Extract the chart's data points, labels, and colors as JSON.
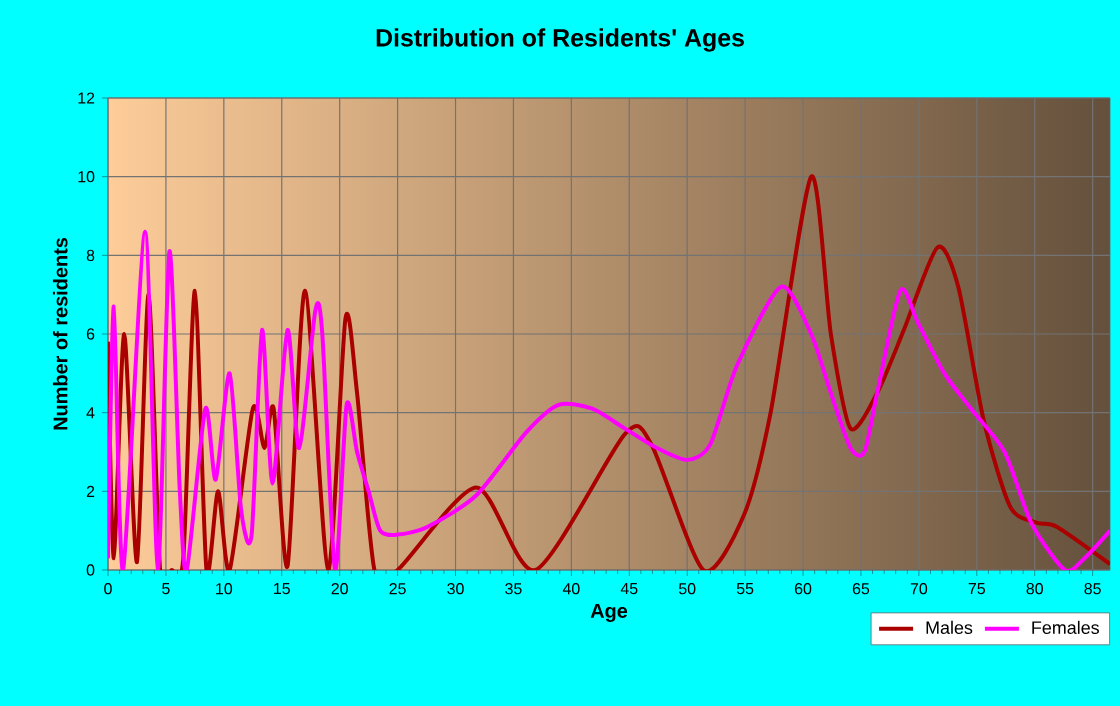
{
  "chart_data": {
    "type": "line",
    "title": "Distribution of Residents' Ages",
    "xlabel": "Age",
    "ylabel": "Number of residents",
    "xlim": [
      0,
      86.5
    ],
    "ylim": [
      0,
      12
    ],
    "xticks": [
      0,
      5,
      10,
      15,
      20,
      25,
      30,
      35,
      40,
      45,
      50,
      55,
      60,
      65,
      70,
      75,
      80,
      85
    ],
    "yticks": [
      0,
      2,
      4,
      6,
      8,
      10,
      12
    ],
    "grid": true,
    "legend": "bottom right",
    "series": [
      {
        "name": "Males",
        "color": "#aa0000",
        "x": [
          0,
          0.5,
          1.4,
          2.5,
          3.5,
          4.5,
          5.5,
          6.5,
          7.5,
          8.5,
          9.5,
          10.5,
          12.5,
          13.5,
          14.3,
          15.5,
          17,
          19,
          20.5,
          21.5,
          23,
          25,
          31.8,
          36.9,
          44.6,
          46.9,
          51.4,
          54.9,
          57.2,
          60.7,
          62.4,
          64.1,
          66.4,
          68.7,
          71.6,
          73.4,
          75.6,
          77.9,
          80.2,
          81.9,
          86.5
        ],
        "values": [
          5.8,
          0.3,
          6,
          0.2,
          7,
          0,
          0,
          0.3,
          7.1,
          0,
          2,
          0,
          4.1,
          3.1,
          4.1,
          0.1,
          7.1,
          0,
          6.4,
          4.5,
          0,
          0,
          2.1,
          0,
          3.45,
          3.2,
          0,
          1.4,
          4,
          10,
          6,
          3.6,
          4.5,
          6.1,
          8.2,
          7.2,
          3.8,
          1.6,
          1.2,
          1.1,
          0.15
        ]
      },
      {
        "name": "Females",
        "color": "#ff00ff",
        "x": [
          0,
          0.5,
          1.3,
          3.2,
          4.3,
          5.3,
          6.2,
          6.8,
          8.4,
          9.3,
          10.5,
          11.5,
          12.4,
          13.3,
          14.2,
          15.5,
          16.5,
          17.9,
          18.5,
          19.6,
          20.6,
          21.5,
          22.5,
          23.5,
          25,
          27.6,
          31.8,
          36.1,
          38.9,
          41.8,
          44.6,
          47.4,
          50,
          52,
          54.3,
          58.1,
          60.7,
          62.4,
          64.1,
          65.3,
          66.4,
          68.4,
          69.9,
          72.2,
          74.5,
          77.4,
          79.7,
          82.6,
          84.3,
          86.5
        ],
        "values": [
          0.3,
          6.7,
          0,
          8.6,
          0,
          8.1,
          2,
          0,
          4.1,
          2.3,
          5,
          1.5,
          0.9,
          6.1,
          2.2,
          6.1,
          3.1,
          6.6,
          6,
          0,
          4.2,
          3,
          2,
          1,
          0.9,
          1.1,
          1.9,
          3.5,
          4.2,
          4.1,
          3.6,
          3.1,
          2.8,
          3.2,
          5.2,
          7.2,
          6,
          4.5,
          3.1,
          3,
          4.5,
          7.1,
          6.3,
          5,
          4.1,
          3,
          1.2,
          0,
          0.3,
          1
        ]
      }
    ]
  }
}
